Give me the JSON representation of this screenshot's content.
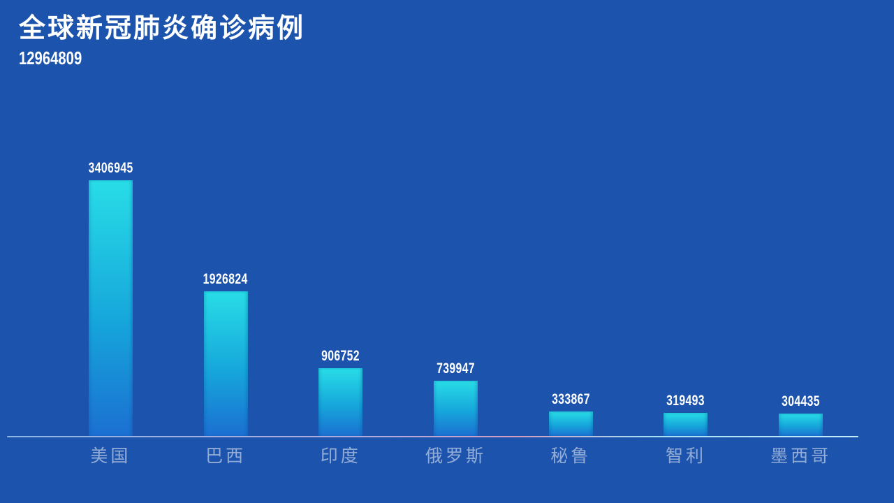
{
  "page": {
    "background_color": "#1c53ac"
  },
  "header": {
    "title": "全球新冠肺炎确诊病例",
    "total": "12964809"
  },
  "chart_data": {
    "type": "bar",
    "title": "全球新冠肺炎确诊病例",
    "total_label": "12964809",
    "categories": [
      "美国",
      "巴西",
      "印度",
      "俄罗斯",
      "秘鲁",
      "智利",
      "墨西哥"
    ],
    "values": [
      3406945,
      1926824,
      906752,
      739947,
      333867,
      319493,
      304435
    ],
    "value_labels": [
      "3406945",
      "1926824",
      "906752",
      "739947",
      "333867",
      "319493",
      "304435"
    ],
    "ylim": [
      0,
      3406945
    ],
    "xlabel": "",
    "ylabel": "",
    "grid": false,
    "legend": false,
    "bar_gradient_top": "#28dde6",
    "bar_gradient_bottom": "#1b6fd1",
    "value_label_color": "#ffffff",
    "category_label_color": "rgba(255,255,255,0.52)",
    "axis_line_colors": [
      "#8ab6e6",
      "#d39cbc",
      "#c2ecfa"
    ]
  }
}
